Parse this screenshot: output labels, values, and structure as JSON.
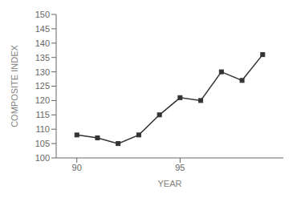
{
  "chart_data": {
    "type": "line",
    "x": [
      90,
      91,
      92,
      93,
      94,
      95,
      96,
      97,
      98,
      99
    ],
    "values": [
      108,
      107,
      105,
      108,
      115,
      121,
      120,
      130,
      127,
      136
    ],
    "xlabel": "YEAR",
    "ylabel": "COMPOSITE INDEX",
    "xlim": [
      89.0,
      100.0
    ],
    "ylim": [
      100,
      150
    ],
    "xticks": [
      90,
      95
    ],
    "yticks": [
      100,
      105,
      110,
      115,
      120,
      125,
      130,
      135,
      140,
      145,
      150
    ],
    "color": "#333333",
    "marker": "square",
    "grid": false
  }
}
